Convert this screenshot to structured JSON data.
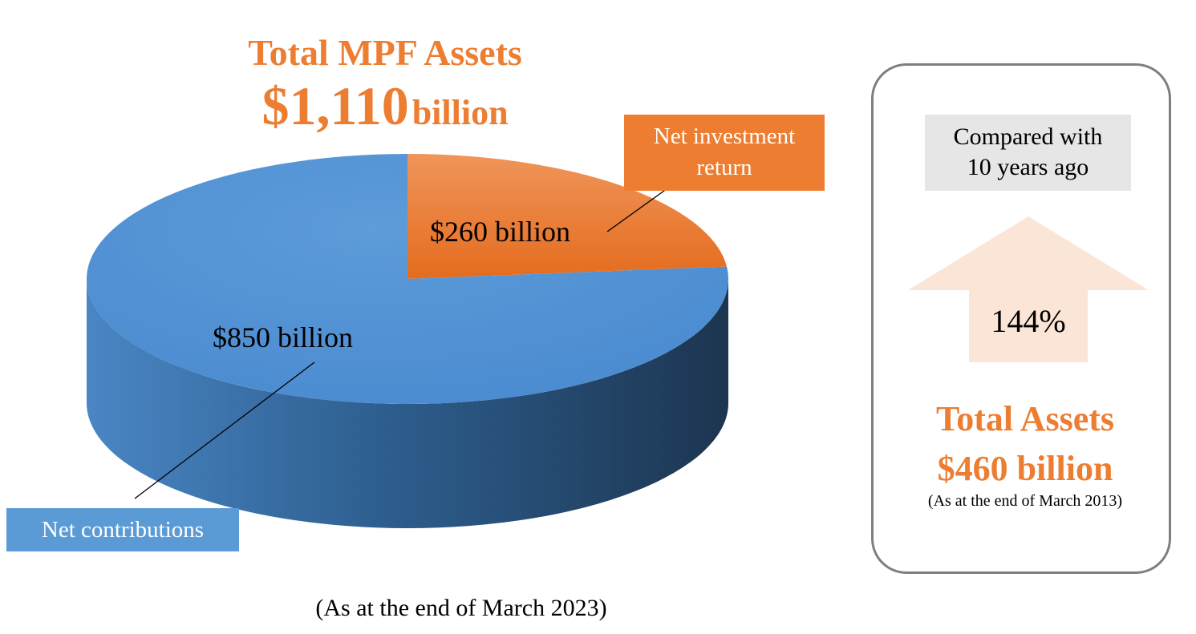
{
  "title": {
    "line1": "Total MPF Assets",
    "amount": "$1,110",
    "unit": "billion"
  },
  "chart_data": {
    "type": "pie",
    "style": "3d",
    "categories": [
      "Net contributions",
      "Net investment return"
    ],
    "values": [
      850,
      260
    ],
    "value_labels": [
      "$850 billion",
      "$260 billion"
    ],
    "colors": [
      "#5B9BD5",
      "#ED7D31"
    ],
    "title": "Total MPF Assets $1,110 billion",
    "total": 1110,
    "note": "(As at the end of March 2023)"
  },
  "callouts": {
    "investment_line1": "Net investment",
    "investment_line2": "return",
    "contributions": "Net contributions"
  },
  "comparison": {
    "label_line1": "Compared with",
    "label_line2": "10 years ago",
    "growth": "144%",
    "past_title": "Total Assets",
    "past_amount": "$460 billion",
    "past_note": "(As at the end of March 2013)",
    "arrow_color": "#FBE5D6"
  },
  "colors": {
    "accent": "#ED7D31",
    "blue": "#5B9BD5",
    "panel_border": "#7F7F7F",
    "label_bg": "#E7E6E6"
  }
}
